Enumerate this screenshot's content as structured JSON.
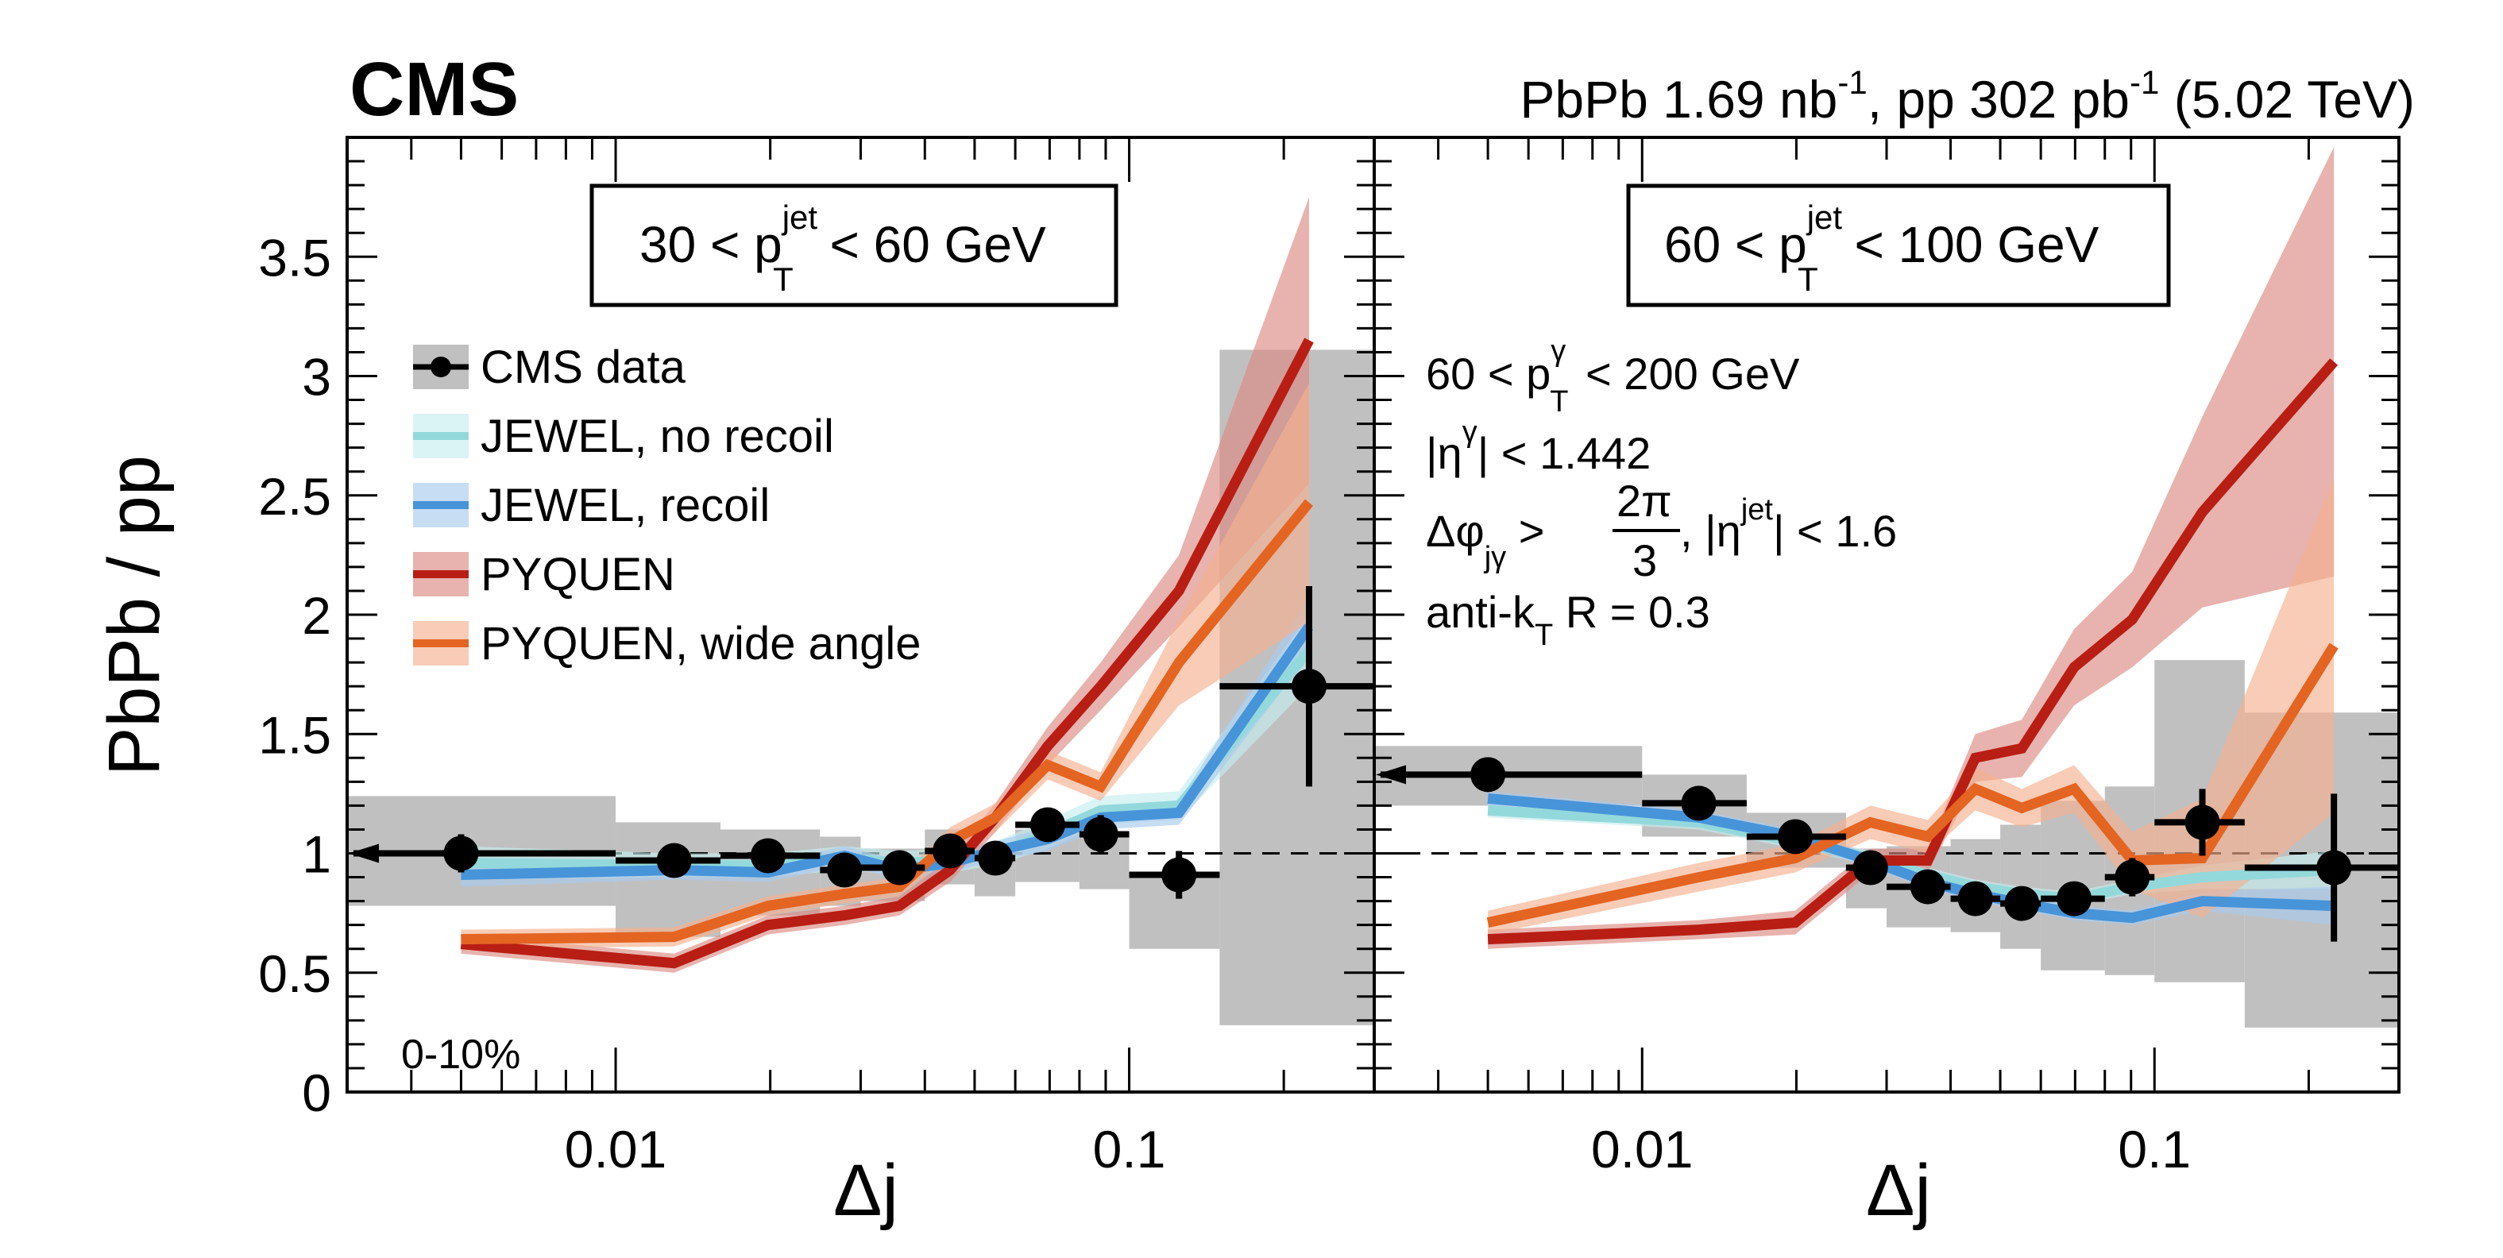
{
  "header": {
    "experiment": "CMS",
    "luminosity": {
      "pbpb_prefix": "PbPb 1.69 nb",
      "pp_prefix": ", pp 302 pb",
      "exponent": "-1",
      "energy": " (5.02 TeV)"
    }
  },
  "chart_data": [
    {
      "type": "scatter",
      "panel": "left",
      "title": "30 < p_T^jet < 60 GeV",
      "title_parts": {
        "pre": "30 < p",
        "sup": "jet",
        "sub": "T",
        "post": " < 60 GeV"
      },
      "centrality_label": "0-10%",
      "xlabel": "Δj",
      "ylabel": "PbPb / pp",
      "xscale": "log",
      "xlim": [
        0.003,
        0.3
      ],
      "ylim": [
        0,
        4
      ],
      "xticks": [
        {
          "value": 0.01,
          "label": "0.01"
        },
        {
          "value": 0.1,
          "label": "0.1"
        }
      ],
      "yticks": [
        {
          "value": 0,
          "label": "0"
        },
        {
          "value": 0.5,
          "label": "0.5"
        },
        {
          "value": 1,
          "label": "1"
        },
        {
          "value": 1.5,
          "label": "1.5"
        },
        {
          "value": 2,
          "label": "2"
        },
        {
          "value": 2.5,
          "label": "2.5"
        },
        {
          "value": 3,
          "label": "3"
        },
        {
          "value": 3.5,
          "label": "3.5"
        }
      ],
      "reference_line": 1.0,
      "data": {
        "name": "CMS data",
        "bins": [
          [
            0.003,
            0.01
          ],
          [
            0.01,
            0.016
          ],
          [
            0.016,
            0.025
          ],
          [
            0.025,
            0.03
          ],
          [
            0.03,
            0.04
          ],
          [
            0.04,
            0.05
          ],
          [
            0.05,
            0.06
          ],
          [
            0.06,
            0.08
          ],
          [
            0.08,
            0.1
          ],
          [
            0.1,
            0.15
          ],
          [
            0.15,
            0.3
          ]
        ],
        "x": [
          0.005,
          0.013,
          0.0198,
          0.0279,
          0.0357,
          0.0448,
          0.0549,
          0.0694,
          0.088,
          0.125,
          0.224
        ],
        "y": [
          1.0,
          0.97,
          0.99,
          0.93,
          0.94,
          1.01,
          0.98,
          1.12,
          1.08,
          0.91,
          1.7
        ],
        "stat_err": [
          0.08,
          0.05,
          0.05,
          0.04,
          0.04,
          0.05,
          0.05,
          0.06,
          0.08,
          0.1,
          0.42
        ],
        "syst_low": [
          0.78,
          0.65,
          0.74,
          0.78,
          0.8,
          0.87,
          0.82,
          0.88,
          0.85,
          0.6,
          0.28
        ],
        "syst_high": [
          1.24,
          1.13,
          1.1,
          1.07,
          1.02,
          1.1,
          1.0,
          1.1,
          1.07,
          0.92,
          3.11
        ],
        "first_bin_arrow": true
      },
      "series": [
        {
          "name": "JEWEL, no recoil",
          "x": [
            0.005,
            0.013,
            0.0198,
            0.0279,
            0.0357,
            0.0448,
            0.0549,
            0.0694,
            0.088,
            0.125,
            0.224
          ],
          "y": [
            0.96,
            0.95,
            0.95,
            0.98,
            0.96,
            0.97,
            1.0,
            1.08,
            1.18,
            1.2,
            1.85
          ],
          "band": [
            0.07,
            0.05,
            0.05,
            0.05,
            0.05,
            0.05,
            0.05,
            0.06,
            0.06,
            0.06,
            0.15
          ]
        },
        {
          "name": "JEWEL, recoil",
          "x": [
            0.005,
            0.013,
            0.0198,
            0.0279,
            0.0357,
            0.0448,
            0.0549,
            0.0694,
            0.088,
            0.125,
            0.224
          ],
          "y": [
            0.91,
            0.93,
            0.92,
            0.99,
            0.93,
            0.96,
            1.01,
            1.06,
            1.15,
            1.17,
            1.95
          ],
          "band": [
            0.05,
            0.04,
            0.04,
            0.04,
            0.04,
            0.04,
            0.04,
            0.05,
            0.05,
            0.05,
            0.12
          ]
        },
        {
          "name": "PYQUEN",
          "x": [
            0.005,
            0.013,
            0.0198,
            0.0279,
            0.0357,
            0.0448,
            0.0549,
            0.0694,
            0.088,
            0.125,
            0.224
          ],
          "y": [
            0.62,
            0.54,
            0.7,
            0.74,
            0.78,
            0.93,
            1.15,
            1.45,
            1.7,
            2.1,
            3.15
          ],
          "band": [
            0.04,
            0.04,
            0.04,
            0.04,
            0.04,
            0.05,
            0.06,
            0.08,
            0.1,
            0.15,
            0.6
          ]
        },
        {
          "name": "PYQUEN, wide angle",
          "x": [
            0.005,
            0.013,
            0.0198,
            0.0279,
            0.0357,
            0.0448,
            0.0549,
            0.0694,
            0.088,
            0.125,
            0.224
          ],
          "y": [
            0.64,
            0.65,
            0.78,
            0.83,
            0.86,
            1.05,
            1.15,
            1.37,
            1.28,
            1.8,
            2.47
          ],
          "band": [
            0.04,
            0.04,
            0.04,
            0.04,
            0.04,
            0.06,
            0.06,
            0.06,
            0.06,
            0.18,
            0.5
          ]
        }
      ]
    },
    {
      "type": "scatter",
      "panel": "right",
      "title": "60 < p_T^jet < 100 GeV",
      "title_parts": {
        "pre": "60 < p",
        "sup": "jet",
        "sub": "T",
        "post": " < 100 GeV"
      },
      "xlabel": "Δj",
      "xscale": "log",
      "xlim": [
        0.003,
        0.3
      ],
      "ylim": [
        0,
        4
      ],
      "xticks": [
        {
          "value": 0.01,
          "label": "0.01"
        },
        {
          "value": 0.1,
          "label": "0.1"
        }
      ],
      "reference_line": 1.0,
      "selection": [
        {
          "pre": "60 < p",
          "sup": "γ",
          "sub": "T",
          "post": " < 200 GeV"
        },
        {
          "pre": "|η",
          "sup": "γ",
          "post": "| < 1.442"
        },
        {
          "pre": "Δφ",
          "sub": "jγ",
          "mid": " > ",
          "frac_num": "2π",
          "frac_den": "3",
          "post_pre": ", |η",
          "post_sup": "jet",
          "post": "| < 1.6"
        },
        {
          "pre": "anti-k",
          "sub": "T",
          "post": " R = 0.3"
        }
      ],
      "data": {
        "name": "CMS data",
        "bins": [
          [
            0.003,
            0.01
          ],
          [
            0.01,
            0.016
          ],
          [
            0.016,
            0.025
          ],
          [
            0.025,
            0.03
          ],
          [
            0.03,
            0.04
          ],
          [
            0.04,
            0.05
          ],
          [
            0.05,
            0.06
          ],
          [
            0.06,
            0.08
          ],
          [
            0.08,
            0.1
          ],
          [
            0.1,
            0.15
          ],
          [
            0.15,
            0.3
          ]
        ],
        "x": [
          0.005,
          0.0129,
          0.0199,
          0.0279,
          0.0361,
          0.0447,
          0.0551,
          0.0697,
          0.0905,
          0.124,
          0.224
        ],
        "y": [
          1.33,
          1.21,
          1.07,
          0.94,
          0.86,
          0.81,
          0.79,
          0.81,
          0.9,
          1.13,
          0.94
        ],
        "stat_err": [
          0.07,
          0.06,
          0.04,
          0.04,
          0.04,
          0.04,
          0.05,
          0.06,
          0.08,
          0.14,
          0.31
        ],
        "syst_low": [
          1.2,
          1.07,
          0.94,
          0.77,
          0.69,
          0.67,
          0.6,
          0.51,
          0.49,
          0.46,
          0.27
        ],
        "syst_high": [
          1.45,
          1.33,
          1.17,
          1.02,
          1.03,
          1.06,
          1.12,
          1.22,
          1.28,
          1.81,
          1.59
        ],
        "first_bin_arrow": true
      },
      "series": [
        {
          "name": "JEWEL, no recoil",
          "x": [
            0.005,
            0.0129,
            0.0199,
            0.0279,
            0.0361,
            0.0447,
            0.0551,
            0.0697,
            0.0905,
            0.124,
            0.224
          ],
          "y": [
            1.18,
            1.13,
            1.05,
            0.98,
            0.91,
            0.86,
            0.83,
            0.81,
            0.86,
            0.9,
            0.93
          ],
          "band": [
            0.03,
            0.03,
            0.03,
            0.03,
            0.03,
            0.03,
            0.03,
            0.03,
            0.03,
            0.05,
            0.08
          ]
        },
        {
          "name": "JEWEL, recoil",
          "x": [
            0.005,
            0.0129,
            0.0199,
            0.0279,
            0.0361,
            0.0447,
            0.0551,
            0.0697,
            0.0905,
            0.124,
            0.224
          ],
          "y": [
            1.23,
            1.15,
            1.07,
            0.97,
            0.88,
            0.83,
            0.79,
            0.75,
            0.73,
            0.8,
            0.78
          ],
          "band": [
            0.03,
            0.03,
            0.03,
            0.03,
            0.03,
            0.03,
            0.03,
            0.03,
            0.03,
            0.04,
            0.08
          ]
        },
        {
          "name": "PYQUEN",
          "x": [
            0.005,
            0.0129,
            0.0199,
            0.0279,
            0.0361,
            0.0447,
            0.0551,
            0.0697,
            0.0905,
            0.124,
            0.224
          ],
          "y": [
            0.64,
            0.68,
            0.71,
            0.97,
            0.97,
            1.4,
            1.44,
            1.78,
            1.98,
            2.43,
            3.06
          ],
          "band": [
            0.04,
            0.04,
            0.05,
            0.05,
            0.05,
            0.1,
            0.12,
            0.16,
            0.2,
            0.4,
            0.9
          ]
        },
        {
          "name": "PYQUEN, wide angle",
          "x": [
            0.005,
            0.0129,
            0.0199,
            0.0279,
            0.0361,
            0.0447,
            0.0551,
            0.0697,
            0.0905,
            0.124,
            0.224
          ],
          "y": [
            0.71,
            0.9,
            0.98,
            1.13,
            1.07,
            1.27,
            1.19,
            1.27,
            0.97,
            0.98,
            1.87
          ],
          "band": [
            0.05,
            0.06,
            0.06,
            0.07,
            0.07,
            0.09,
            0.08,
            0.1,
            0.12,
            0.25,
            0.7
          ]
        }
      ]
    }
  ],
  "legend": {
    "items": [
      {
        "name": "CMS data",
        "kind": "data"
      },
      {
        "name": "JEWEL, no recoil",
        "kind": "band"
      },
      {
        "name": "JEWEL, recoil",
        "kind": "band"
      },
      {
        "name": "PYQUEN",
        "kind": "band"
      },
      {
        "name": "PYQUEN, wide angle",
        "kind": "band"
      }
    ]
  },
  "colors": {
    "syst_box": "#c0c0c0",
    "JEWEL, no recoil": {
      "line": "#93d9dc",
      "band": "#c6ecee"
    },
    "JEWEL, recoil": {
      "line": "#4794d9",
      "band": "#a9cbee"
    },
    "PYQUEN": {
      "line": "#b81e14",
      "band": "#dc8a83"
    },
    "PYQUEN, wide angle": {
      "line": "#e46422",
      "band": "#f4b08f"
    }
  }
}
